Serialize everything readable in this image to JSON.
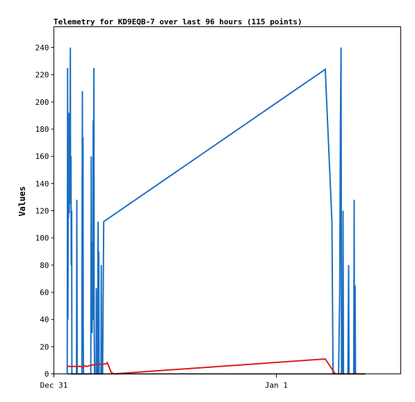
{
  "chart_data": {
    "type": "line",
    "title": "Telemetry for KD9EQB-7 over last 96 hours (115 points)",
    "ylabel": "Values",
    "xlabel": "",
    "ylim": [
      0,
      255
    ],
    "yticks": [
      0,
      20,
      40,
      60,
      80,
      100,
      120,
      140,
      160,
      180,
      200,
      220,
      240
    ],
    "xlim": [
      0,
      1.5
    ],
    "xticks": [
      {
        "label": "Dec 31",
        "x": 0
      },
      {
        "label": "Jan 1",
        "x": 1
      }
    ],
    "grid": false,
    "legend": "none",
    "series": [
      {
        "color": "#1a6fc4",
        "points": [
          [
            0.06,
            0
          ],
          [
            0.062,
            225
          ],
          [
            0.063,
            40
          ],
          [
            0.065,
            165
          ],
          [
            0.066,
            115
          ],
          [
            0.068,
            192
          ],
          [
            0.069,
            118
          ],
          [
            0.071,
            192
          ],
          [
            0.072,
            125
          ],
          [
            0.074,
            240
          ],
          [
            0.075,
            135
          ],
          [
            0.077,
            160
          ],
          [
            0.078,
            80
          ],
          [
            0.08,
            120
          ],
          [
            0.081,
            0
          ],
          [
            0.102,
            0
          ],
          [
            0.103,
            128
          ],
          [
            0.105,
            0
          ],
          [
            0.126,
            0
          ],
          [
            0.127,
            105
          ],
          [
            0.128,
            208
          ],
          [
            0.129,
            100
          ],
          [
            0.131,
            174
          ],
          [
            0.132,
            35
          ],
          [
            0.133,
            0
          ],
          [
            0.166,
            0
          ],
          [
            0.167,
            80
          ],
          [
            0.168,
            160
          ],
          [
            0.169,
            30
          ],
          [
            0.171,
            97
          ],
          [
            0.172,
            30
          ],
          [
            0.173,
            75
          ],
          [
            0.175,
            40
          ],
          [
            0.177,
            185
          ],
          [
            0.178,
            187
          ],
          [
            0.179,
            160
          ],
          [
            0.18,
            225
          ],
          [
            0.181,
            40
          ],
          [
            0.183,
            0
          ],
          [
            0.19,
            0
          ],
          [
            0.191,
            63
          ],
          [
            0.192,
            0
          ],
          [
            0.197,
            0
          ],
          [
            0.198,
            95
          ],
          [
            0.199,
            112
          ],
          [
            0.2,
            0
          ],
          [
            0.202,
            90
          ],
          [
            0.203,
            0
          ],
          [
            0.212,
            0
          ],
          [
            0.213,
            80
          ],
          [
            0.214,
            0
          ],
          [
            0.219,
            0
          ],
          [
            0.224,
            112
          ],
          [
            1.22,
            224
          ],
          [
            1.25,
            112
          ],
          [
            1.255,
            0
          ],
          [
            1.28,
            0
          ],
          [
            1.285,
            60
          ],
          [
            1.288,
            180
          ],
          [
            1.291,
            240
          ],
          [
            1.293,
            0
          ],
          [
            1.298,
            0
          ],
          [
            1.3,
            120
          ],
          [
            1.302,
            0
          ],
          [
            1.322,
            0
          ],
          [
            1.325,
            80
          ],
          [
            1.327,
            0
          ],
          [
            1.348,
            0
          ],
          [
            1.35,
            128
          ],
          [
            1.351,
            0
          ],
          [
            1.354,
            65
          ],
          [
            1.356,
            0
          ],
          [
            1.4,
            0
          ]
        ]
      },
      {
        "color": "#dd1a1a",
        "points": [
          [
            0.06,
            5.5
          ],
          [
            0.125,
            5.5
          ],
          [
            0.13,
            4.8
          ],
          [
            0.137,
            5.8
          ],
          [
            0.15,
            5.5
          ],
          [
            0.158,
            6
          ],
          [
            0.168,
            6.3
          ],
          [
            0.172,
            6.7
          ],
          [
            0.18,
            6.5
          ],
          [
            0.19,
            7.3
          ],
          [
            0.205,
            7.2
          ],
          [
            0.21,
            6.8
          ],
          [
            0.235,
            7.5
          ],
          [
            0.24,
            8.2
          ],
          [
            0.258,
            1
          ],
          [
            0.27,
            0
          ],
          [
            1.22,
            11
          ],
          [
            1.265,
            0
          ],
          [
            1.4,
            0
          ]
        ]
      },
      {
        "color": "#000000",
        "points": [
          [
            0.06,
            0
          ],
          [
            1.4,
            0
          ]
        ]
      }
    ]
  }
}
